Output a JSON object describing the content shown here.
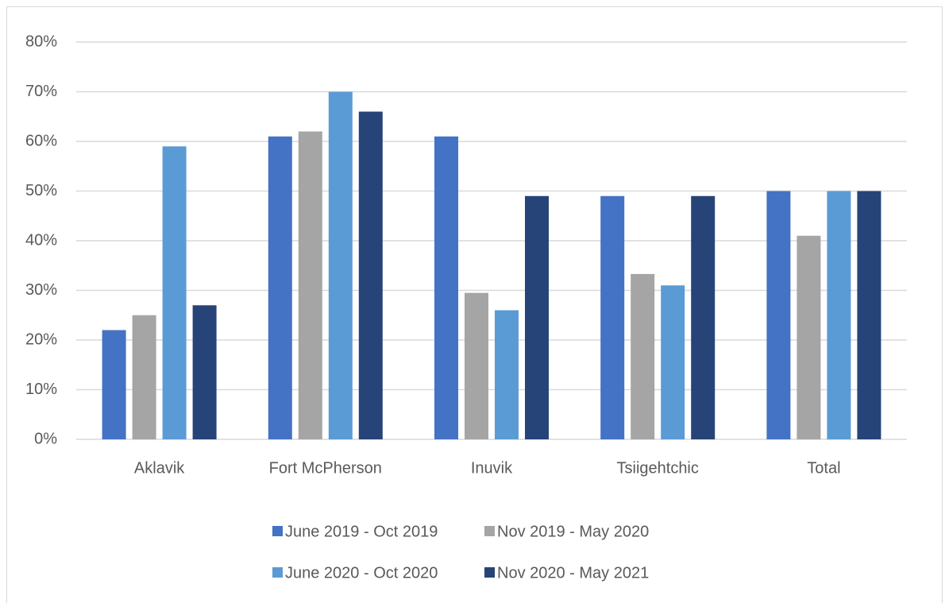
{
  "chart_data": {
    "type": "bar",
    "categories": [
      "Aklavik",
      "Fort McPherson",
      "Inuvik",
      "Tsiigehtchic",
      "Total"
    ],
    "series": [
      {
        "name": "June 2019 - Oct 2019",
        "color": "#4472c4",
        "values": [
          22,
          61,
          61,
          49,
          50
        ]
      },
      {
        "name": "Nov 2019 - May 2020",
        "color": "#a5a5a5",
        "values": [
          25,
          62,
          29.5,
          33.3,
          41
        ]
      },
      {
        "name": "June 2020 - Oct 2020",
        "color": "#5b9bd5",
        "values": [
          59,
          70,
          26,
          31,
          50
        ]
      },
      {
        "name": "Nov 2020 - May 2021",
        "color": "#264478",
        "values": [
          27,
          66,
          49,
          49,
          50
        ]
      }
    ],
    "ylim": [
      0,
      80
    ],
    "yticks": [
      {
        "value": 0,
        "label": "0%"
      },
      {
        "value": 10,
        "label": "10%"
      },
      {
        "value": 20,
        "label": "20%"
      },
      {
        "value": 30,
        "label": "30%"
      },
      {
        "value": 40,
        "label": "40%"
      },
      {
        "value": 50,
        "label": "50%"
      },
      {
        "value": 60,
        "label": "60%"
      },
      {
        "value": 70,
        "label": "70%"
      },
      {
        "value": 80,
        "label": "80%"
      }
    ],
    "grid": true,
    "legend": "bottom"
  }
}
